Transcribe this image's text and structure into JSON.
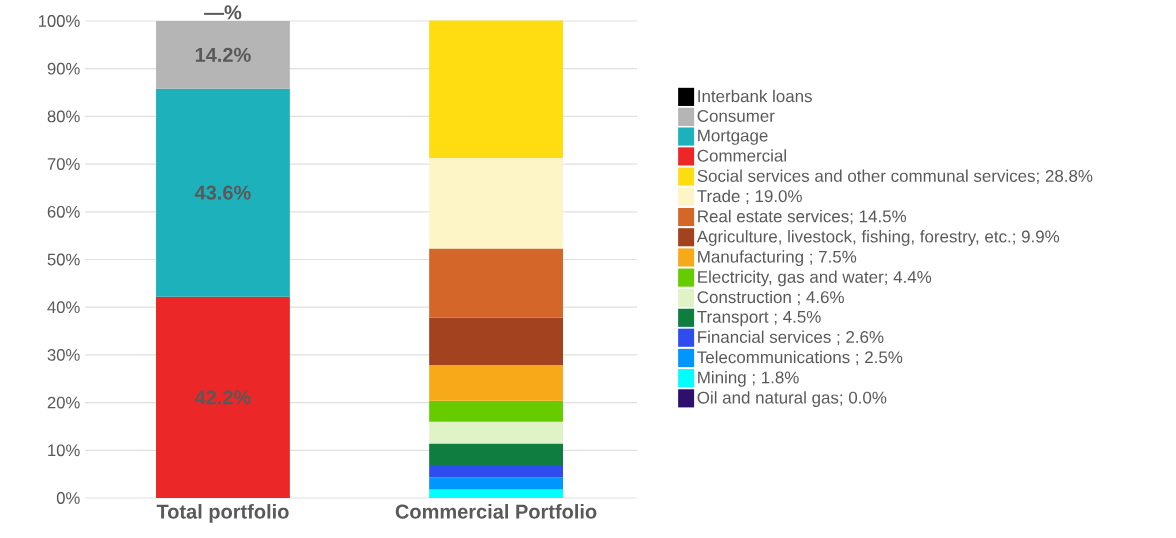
{
  "chart_data": {
    "type": "bar",
    "stacked": true,
    "categories": [
      "Total portfolio",
      "Commercial Portfolio"
    ],
    "ylim": [
      0,
      100
    ],
    "yticks": [
      {
        "value": 0,
        "label": "0%"
      },
      {
        "value": 10,
        "label": "10%"
      },
      {
        "value": 20,
        "label": "20%"
      },
      {
        "value": 30,
        "label": "30%"
      },
      {
        "value": 40,
        "label": "40%"
      },
      {
        "value": 50,
        "label": "50%"
      },
      {
        "value": 60,
        "label": "60%"
      },
      {
        "value": 70,
        "label": "70%"
      },
      {
        "value": 80,
        "label": "80%"
      },
      {
        "value": 90,
        "label": "90%"
      },
      {
        "value": 100,
        "label": "100%"
      }
    ],
    "grid": "y",
    "legend": "right",
    "series": [
      {
        "name": "Oil and natural gas; 0.0%",
        "color": "#2e0f6e",
        "values": [
          null,
          0.0
        ]
      },
      {
        "name": "Mining ; 1.8%",
        "color": "#00ffff",
        "values": [
          null,
          1.8
        ]
      },
      {
        "name": "Telecommunications ; 2.5%",
        "color": "#0096ff",
        "values": [
          null,
          2.5
        ]
      },
      {
        "name": "Financial services ; 2.6%",
        "color": "#2f4cf0",
        "values": [
          null,
          2.6
        ]
      },
      {
        "name": "Transport ; 4.5%",
        "color": "#0f7d40",
        "values": [
          null,
          4.5
        ]
      },
      {
        "name": "Construction ; 4.6%",
        "color": "#e0f3c6",
        "values": [
          null,
          4.6
        ]
      },
      {
        "name": "Electricity, gas and water; 4.4%",
        "color": "#66cc00",
        "values": [
          null,
          4.4
        ]
      },
      {
        "name": "Manufacturing ; 7.5%",
        "color": "#f8a91a",
        "values": [
          null,
          7.5
        ]
      },
      {
        "name": "Agriculture, livestock, fishing, forestry, etc.; 9.9%",
        "color": "#a3421f",
        "values": [
          null,
          9.9
        ]
      },
      {
        "name": "Real estate services; 14.5%",
        "color": "#d5662a",
        "values": [
          null,
          14.5
        ]
      },
      {
        "name": "Trade ; 19.0%",
        "color": "#fdf5c5",
        "values": [
          null,
          19.0
        ]
      },
      {
        "name": "Social services and other communal services; 28.8%",
        "color": "#ffdd11",
        "values": [
          null,
          28.8
        ]
      },
      {
        "name": "Commercial",
        "color": "#ec2727",
        "values": [
          42.2,
          null
        ],
        "value_labels": [
          "42.2%",
          null
        ]
      },
      {
        "name": "Mortgage",
        "color": "#1db2bb",
        "values": [
          43.6,
          null
        ],
        "value_labels": [
          "43.6%",
          null
        ]
      },
      {
        "name": "Consumer",
        "color": "#b5b5b5",
        "values": [
          14.2,
          null
        ],
        "value_labels": [
          "14.2%",
          null
        ]
      },
      {
        "name": "Interbank loans",
        "color": "#000000",
        "values": [
          0,
          null
        ],
        "value_labels": [
          "—%",
          null
        ]
      }
    ]
  }
}
